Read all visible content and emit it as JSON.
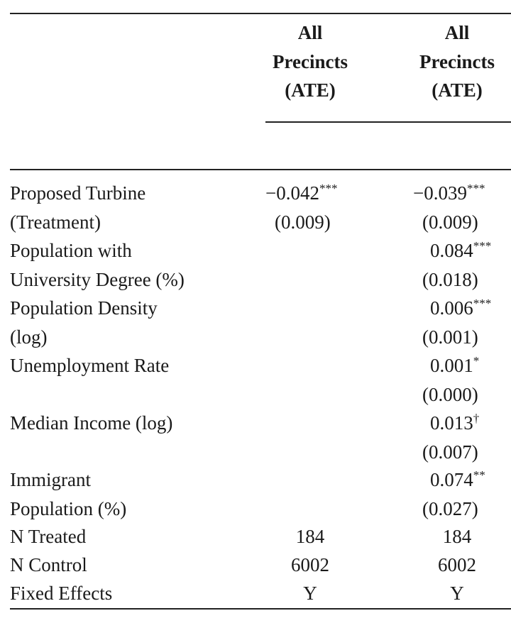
{
  "columns": [
    {
      "lines": [
        "All",
        "Precincts",
        "(ATE)"
      ]
    },
    {
      "lines": [
        "All",
        "Precincts",
        "(ATE)"
      ]
    }
  ],
  "rows": [
    {
      "label": [
        "Proposed Turbine",
        "(Treatment)"
      ],
      "col1": {
        "coef": "−0.042",
        "stars": "***",
        "se": "(0.009)"
      },
      "col2": {
        "coef": "−0.039",
        "stars": "***",
        "se": "(0.009)"
      }
    },
    {
      "label": [
        "Population with",
        "University Degree (%)"
      ],
      "col2": {
        "coef": "0.084",
        "stars": "***",
        "se": "(0.018)"
      }
    },
    {
      "label": [
        "Population Density",
        "(log)"
      ],
      "col2": {
        "coef": "0.006",
        "stars": "***",
        "se": "(0.001)"
      }
    },
    {
      "label": [
        "Unemployment Rate"
      ],
      "col2": {
        "coef": "0.001",
        "stars": "*",
        "se": "(0.000)"
      }
    },
    {
      "label": [
        "Median Income (log)"
      ],
      "col2": {
        "coef": "0.013",
        "stars": "†",
        "se": "(0.007)"
      }
    },
    {
      "label": [
        "Immigrant",
        "Population (%)"
      ],
      "col2": {
        "coef": "0.074",
        "stars": "**",
        "se": "(0.027)"
      }
    }
  ],
  "footer_rows": [
    {
      "label": "N Treated",
      "col1": "184",
      "col2": "184"
    },
    {
      "label": "N Control",
      "col1": "6002",
      "col2": "6002"
    },
    {
      "label": "Fixed Effects",
      "col1": "Y",
      "col2": "Y"
    }
  ]
}
